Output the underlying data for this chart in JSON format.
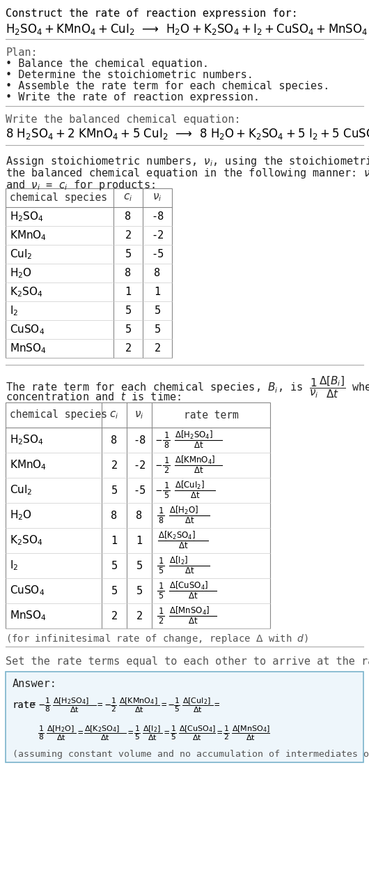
{
  "bg_color": "#ffffff",
  "title_line1": "Construct the rate of reaction expression for:",
  "table1_headers": [
    "chemical species",
    "c_i",
    "v_i"
  ],
  "table1_rows": [
    [
      "H_2SO_4",
      "8",
      "-8"
    ],
    [
      "KMnO_4",
      "2",
      "-2"
    ],
    [
      "CuI_2",
      "5",
      "-5"
    ],
    [
      "H_2O",
      "8",
      "8"
    ],
    [
      "K_2SO_4",
      "1",
      "1"
    ],
    [
      "I_2",
      "5",
      "5"
    ],
    [
      "CuSO_4",
      "5",
      "5"
    ],
    [
      "MnSO_4",
      "2",
      "2"
    ]
  ],
  "table2_rows": [
    [
      "H_2SO_4",
      "8",
      "-8",
      "-",
      "1",
      "8",
      "H_2SO_4"
    ],
    [
      "KMnO_4",
      "2",
      "-2",
      "-",
      "1",
      "2",
      "KMnO_4"
    ],
    [
      "CuI_2",
      "5",
      "-5",
      "-",
      "1",
      "5",
      "CuI_2"
    ],
    [
      "H_2O",
      "8",
      "8",
      "",
      "1",
      "8",
      "H_2O"
    ],
    [
      "K_2SO_4",
      "1",
      "1",
      "",
      "",
      "",
      "K_2SO_4"
    ],
    [
      "I_2",
      "5",
      "5",
      "",
      "1",
      "5",
      "I_2"
    ],
    [
      "CuSO_4",
      "5",
      "5",
      "",
      "1",
      "5",
      "CuSO_4"
    ],
    [
      "MnSO_4",
      "2",
      "2",
      "",
      "1",
      "2",
      "MnSO_4"
    ]
  ],
  "answer_box_border": "#a0c4d8",
  "answer_box_bg": "#f0f8ff"
}
